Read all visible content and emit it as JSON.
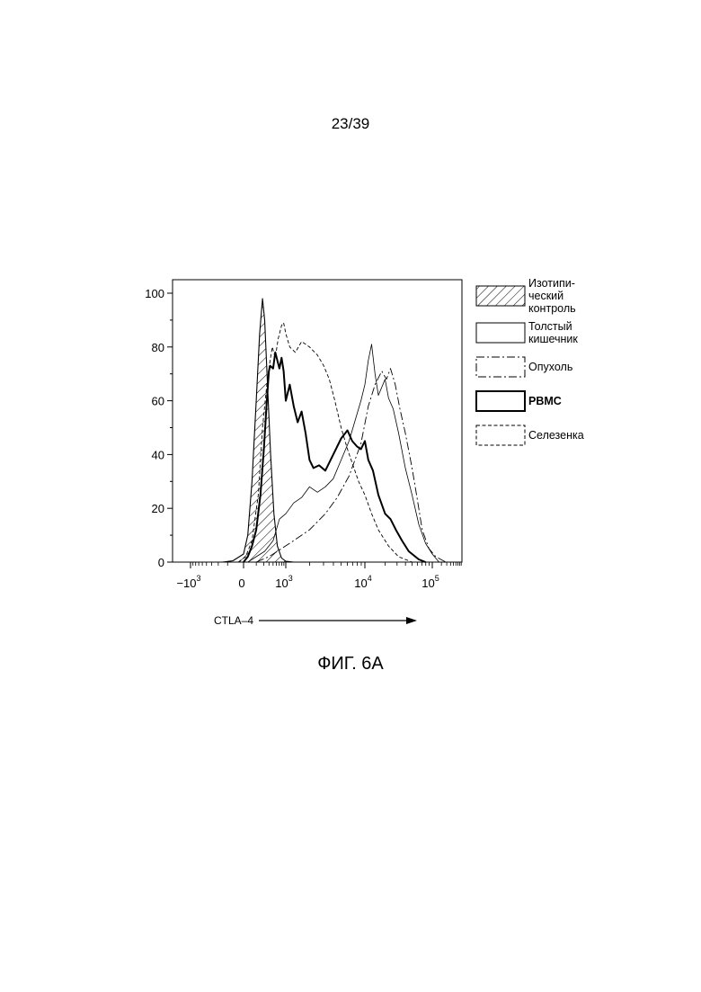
{
  "page": {
    "number": "23/39"
  },
  "figure": {
    "caption": "ФИГ. 6А"
  },
  "chart_data": {
    "type": "area",
    "title": "",
    "xlabel": "CTLA–4",
    "ylabel": "",
    "x_scale": "biexponential",
    "ylim": [
      0,
      100
    ],
    "y_ticks": [
      "0",
      "20",
      "40",
      "60",
      "80",
      "100"
    ],
    "x_ticks": [
      {
        "base": "−10",
        "exp": "3"
      },
      {
        "base": "0",
        "exp": ""
      },
      {
        "base": "10",
        "exp": "3"
      },
      {
        "base": "10",
        "exp": "4"
      },
      {
        "base": "10",
        "exp": "5"
      }
    ],
    "legend_position": "right",
    "legend": [
      {
        "key": "isotype",
        "lines": [
          "Изотипи-",
          "ческий",
          "контроль"
        ],
        "style": "hatched"
      },
      {
        "key": "colon",
        "lines": [
          "Толстый",
          "кишечник"
        ],
        "style": "thin-solid"
      },
      {
        "key": "tumor",
        "lines": [
          "Опухоль"
        ],
        "style": "dash-dot"
      },
      {
        "key": "pbmc",
        "lines": [
          "PBMC"
        ],
        "style": "thick-solid"
      },
      {
        "key": "spleen",
        "lines": [
          "Селезенка"
        ],
        "style": "dashed"
      }
    ],
    "series": [
      {
        "key": "isotype",
        "name": "Изотипический контроль",
        "points": [
          [
            -0.4,
            0
          ],
          [
            -0.2,
            0.5
          ],
          [
            0,
            3
          ],
          [
            0.1,
            10
          ],
          [
            0.2,
            30
          ],
          [
            0.3,
            60
          ],
          [
            0.38,
            85
          ],
          [
            0.45,
            98
          ],
          [
            0.5,
            90
          ],
          [
            0.57,
            65
          ],
          [
            0.64,
            40
          ],
          [
            0.72,
            18
          ],
          [
            0.8,
            6
          ],
          [
            0.9,
            1.5
          ],
          [
            1,
            0.3
          ],
          [
            1.1,
            0
          ]
        ]
      },
      {
        "key": "colon",
        "name": "Толстый кишечник",
        "points": [
          [
            0.1,
            0
          ],
          [
            0.3,
            2
          ],
          [
            0.5,
            4
          ],
          [
            0.7,
            8
          ],
          [
            0.85,
            16
          ],
          [
            1.0,
            18
          ],
          [
            1.1,
            22
          ],
          [
            1.2,
            24
          ],
          [
            1.3,
            28
          ],
          [
            1.4,
            26
          ],
          [
            1.5,
            28
          ],
          [
            1.6,
            31
          ],
          [
            1.7,
            38
          ],
          [
            1.8,
            45
          ],
          [
            1.9,
            55
          ],
          [
            1.95,
            60
          ],
          [
            2.0,
            66
          ],
          [
            2.05,
            75
          ],
          [
            2.1,
            81
          ],
          [
            2.15,
            70
          ],
          [
            2.2,
            62
          ],
          [
            2.3,
            68
          ],
          [
            2.35,
            61
          ],
          [
            2.42,
            57
          ],
          [
            2.5,
            48
          ],
          [
            2.6,
            35
          ],
          [
            2.7,
            25
          ],
          [
            2.8,
            14
          ],
          [
            2.9,
            7
          ],
          [
            3.0,
            3
          ],
          [
            3.1,
            0
          ]
        ]
      },
      {
        "key": "tumor",
        "name": "Опухоль",
        "points": [
          [
            0.3,
            0
          ],
          [
            0.6,
            2
          ],
          [
            0.9,
            5
          ],
          [
            1.1,
            8
          ],
          [
            1.3,
            12
          ],
          [
            1.5,
            18
          ],
          [
            1.65,
            24
          ],
          [
            1.8,
            32
          ],
          [
            1.95,
            44
          ],
          [
            2.05,
            58
          ],
          [
            2.15,
            66
          ],
          [
            2.25,
            71
          ],
          [
            2.32,
            68
          ],
          [
            2.38,
            72
          ],
          [
            2.45,
            66
          ],
          [
            2.52,
            57
          ],
          [
            2.6,
            48
          ],
          [
            2.7,
            35
          ],
          [
            2.78,
            23
          ],
          [
            2.85,
            12
          ],
          [
            2.95,
            5
          ],
          [
            3.05,
            2
          ],
          [
            3.2,
            0
          ]
        ]
      },
      {
        "key": "pbmc",
        "name": "PBMC",
        "points": [
          [
            0,
            0
          ],
          [
            0.1,
            2
          ],
          [
            0.2,
            6
          ],
          [
            0.3,
            12
          ],
          [
            0.4,
            25
          ],
          [
            0.48,
            42
          ],
          [
            0.55,
            60
          ],
          [
            0.6,
            71
          ],
          [
            0.63,
            73
          ],
          [
            0.7,
            72
          ],
          [
            0.75,
            78
          ],
          [
            0.8,
            75
          ],
          [
            0.85,
            72
          ],
          [
            0.9,
            76
          ],
          [
            0.95,
            71
          ],
          [
            1.0,
            60
          ],
          [
            1.05,
            66
          ],
          [
            1.1,
            58
          ],
          [
            1.15,
            52
          ],
          [
            1.2,
            56
          ],
          [
            1.25,
            48
          ],
          [
            1.3,
            38
          ],
          [
            1.35,
            35
          ],
          [
            1.42,
            36
          ],
          [
            1.5,
            34
          ],
          [
            1.6,
            40
          ],
          [
            1.7,
            46
          ],
          [
            1.78,
            49
          ],
          [
            1.84,
            45
          ],
          [
            1.9,
            43
          ],
          [
            1.95,
            42
          ],
          [
            2.0,
            45
          ],
          [
            2.05,
            38
          ],
          [
            2.12,
            34
          ],
          [
            2.2,
            25
          ],
          [
            2.3,
            18
          ],
          [
            2.38,
            16
          ],
          [
            2.46,
            12
          ],
          [
            2.55,
            8
          ],
          [
            2.65,
            4
          ],
          [
            2.8,
            1
          ],
          [
            2.9,
            0
          ]
        ]
      },
      {
        "key": "spleen",
        "name": "Селезенка",
        "points": [
          [
            -0.1,
            0
          ],
          [
            0.05,
            2
          ],
          [
            0.2,
            8
          ],
          [
            0.35,
            25
          ],
          [
            0.45,
            50
          ],
          [
            0.55,
            66
          ],
          [
            0.62,
            74
          ],
          [
            0.68,
            80
          ],
          [
            0.75,
            76
          ],
          [
            0.82,
            83
          ],
          [
            0.9,
            88
          ],
          [
            0.95,
            89
          ],
          [
            1.0,
            85
          ],
          [
            1.05,
            80
          ],
          [
            1.12,
            78
          ],
          [
            1.2,
            82
          ],
          [
            1.3,
            80
          ],
          [
            1.4,
            77
          ],
          [
            1.48,
            73
          ],
          [
            1.55,
            68
          ],
          [
            1.62,
            60
          ],
          [
            1.7,
            50
          ],
          [
            1.78,
            42
          ],
          [
            1.85,
            36
          ],
          [
            1.92,
            30
          ],
          [
            2.0,
            25
          ],
          [
            2.1,
            18
          ],
          [
            2.2,
            12
          ],
          [
            2.35,
            6
          ],
          [
            2.5,
            2
          ],
          [
            2.7,
            0
          ]
        ]
      }
    ]
  }
}
